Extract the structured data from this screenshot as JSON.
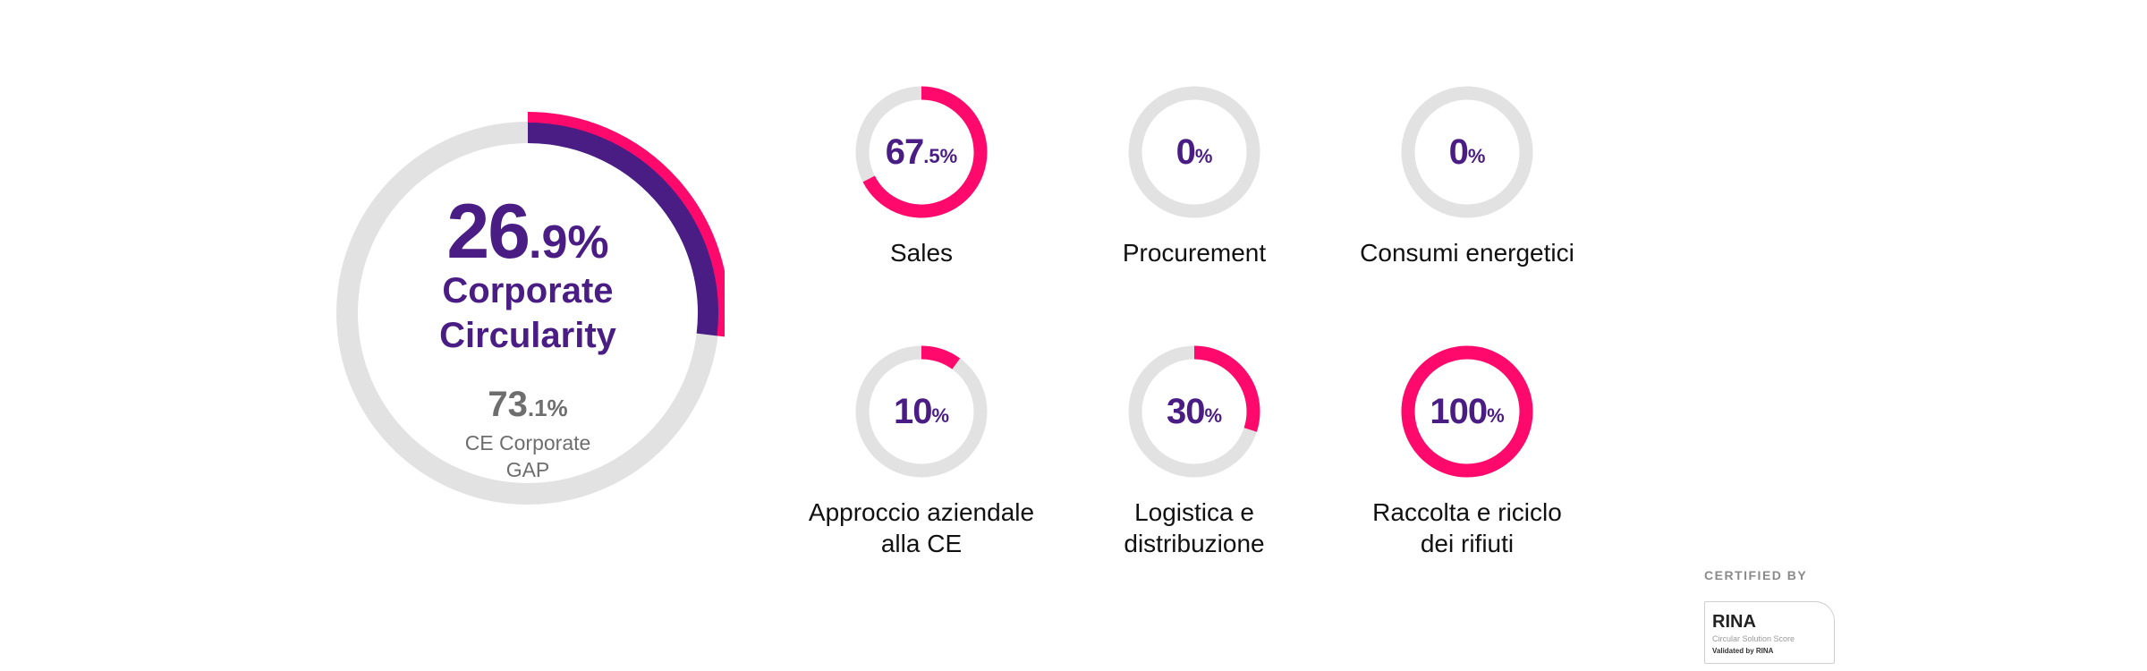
{
  "colors": {
    "track": "#e2e2e2",
    "accent_pink": "#ff0a6c",
    "accent_purple": "#4a1d84",
    "text_gray": "#6e6e6e"
  },
  "chart_data": [
    {
      "type": "pie",
      "title": "",
      "value_int": "26",
      "value_dec": ".9%",
      "label_line1": "Corporate",
      "label_line2": "Circularity",
      "gap_int": "73",
      "gap_dec": ".1%",
      "gap_label_line1": "CE Corporate",
      "gap_label_line2": "GAP",
      "values": [
        26.9,
        73.1
      ]
    },
    {
      "type": "pie",
      "kpis": [
        {
          "label": "Sales",
          "label_line2": "",
          "value": 67.5,
          "display_int": "67",
          "display_small": ".5%"
        },
        {
          "label": "Procurement",
          "label_line2": "",
          "value": 0,
          "display_int": "0",
          "display_small": "%"
        },
        {
          "label": "Consumi energetici",
          "label_line2": "",
          "value": 0,
          "display_int": "0",
          "display_small": "%"
        },
        {
          "label": "Approccio aziendale",
          "label_line2": "alla CE",
          "value": 10,
          "display_int": "10",
          "display_small": "%"
        },
        {
          "label": "Logistica e",
          "label_line2": "distribuzione",
          "value": 30,
          "display_int": "30",
          "display_small": "%"
        },
        {
          "label": "Raccolta e riciclo",
          "label_line2": "dei rifiuti",
          "value": 100,
          "display_int": "100",
          "display_small": "%"
        }
      ]
    }
  ],
  "certification": {
    "title": "CERTIFIED BY",
    "logo_text": "RINA",
    "line1": "Circular Solution Score",
    "line2": "Validated by RINA"
  }
}
